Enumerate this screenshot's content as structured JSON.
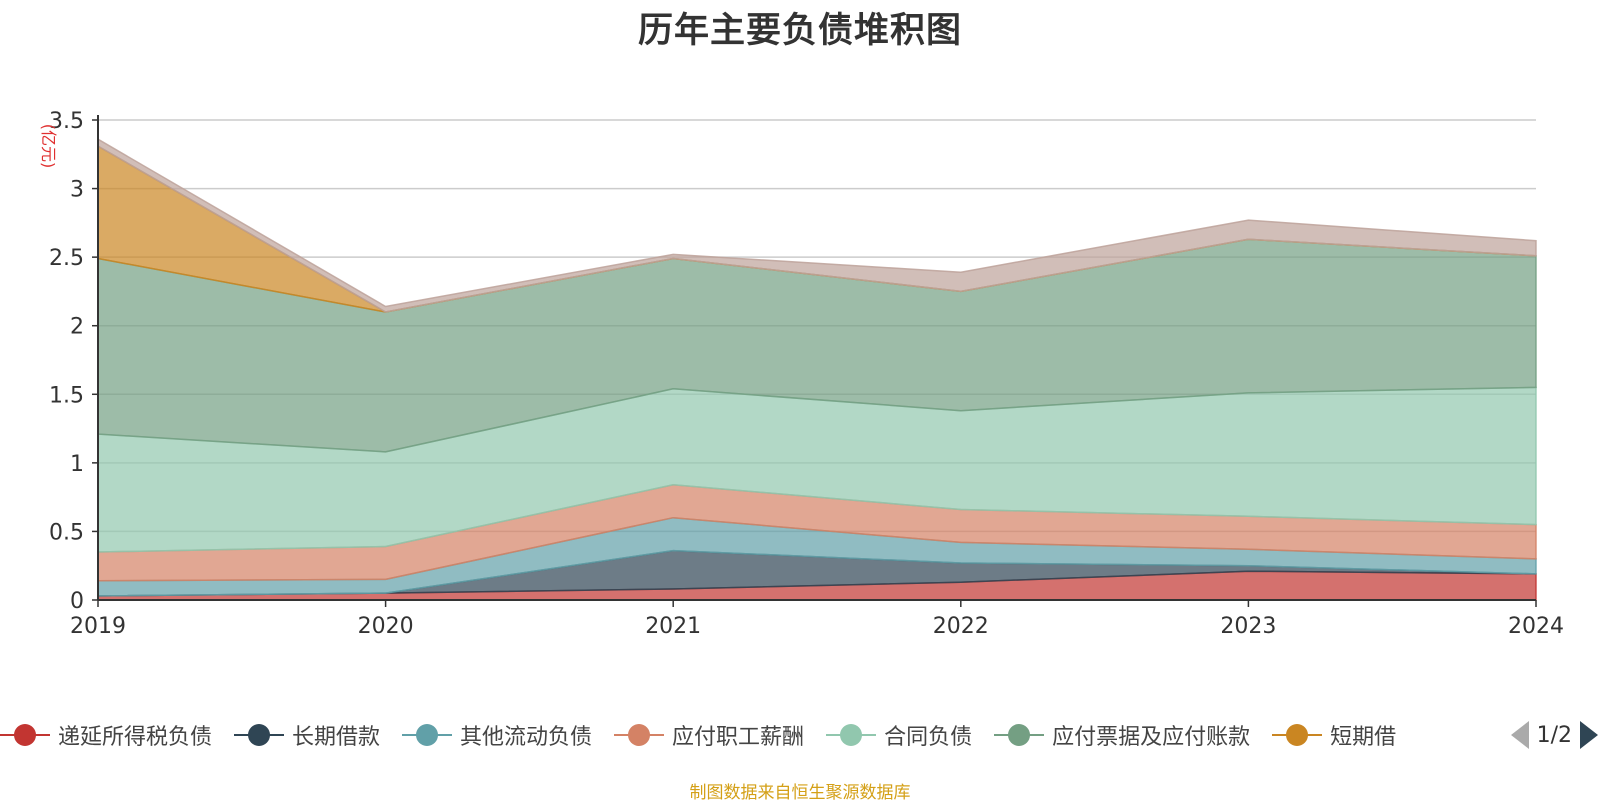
{
  "chart_data": {
    "type": "area",
    "title": "历年主要负债堆积图",
    "unit": "(亿元)",
    "categories": [
      "2019",
      "2020",
      "2021",
      "2022",
      "2023",
      "2024"
    ],
    "ylim": [
      0,
      3.5
    ],
    "yticks": [
      "0",
      "0.5",
      "1",
      "1.5",
      "2",
      "2.5",
      "3",
      "3.5"
    ],
    "stacked": true,
    "grid": true,
    "series": [
      {
        "name": "递延所得税负债",
        "color": "#c23531",
        "values": [
          0.03,
          0.05,
          0.08,
          0.13,
          0.21,
          0.19
        ]
      },
      {
        "name": "长期借款",
        "color": "#2f4554",
        "values": [
          0.0,
          0.0,
          0.28,
          0.14,
          0.04,
          0.0
        ]
      },
      {
        "name": "其他流动负债",
        "color": "#61a0a8",
        "values": [
          0.11,
          0.1,
          0.24,
          0.15,
          0.12,
          0.11
        ]
      },
      {
        "name": "应付职工薪酬",
        "color": "#d48265",
        "values": [
          0.21,
          0.24,
          0.24,
          0.24,
          0.24,
          0.25
        ]
      },
      {
        "name": "合同负债",
        "color": "#91c7ae",
        "values": [
          0.86,
          0.69,
          0.7,
          0.72,
          0.9,
          1.0
        ]
      },
      {
        "name": "应付票据及应付账款",
        "color": "#749f83",
        "values": [
          1.28,
          1.02,
          0.95,
          0.87,
          1.12,
          0.96
        ]
      },
      {
        "name": "短期借",
        "color": "#ca8622",
        "values": [
          0.82,
          0.0,
          0.0,
          0.0,
          0.0,
          0.0
        ]
      },
      {
        "name": "",
        "color": "#bda29a",
        "values": [
          0.05,
          0.04,
          0.03,
          0.14,
          0.14,
          0.11
        ]
      }
    ]
  },
  "legend": {
    "items": [
      {
        "label": "递延所得税负债",
        "color": "#c23531"
      },
      {
        "label": "长期借款",
        "color": "#2f4554"
      },
      {
        "label": "其他流动负债",
        "color": "#61a0a8"
      },
      {
        "label": "应付职工薪酬",
        "color": "#d48265"
      },
      {
        "label": "合同负债",
        "color": "#91c7ae"
      },
      {
        "label": "应付票据及应付账款",
        "color": "#749f83"
      },
      {
        "label": "短期借",
        "color": "#ca8622"
      }
    ],
    "page": "1/2"
  },
  "source": "制图数据来自恒生聚源数据库"
}
